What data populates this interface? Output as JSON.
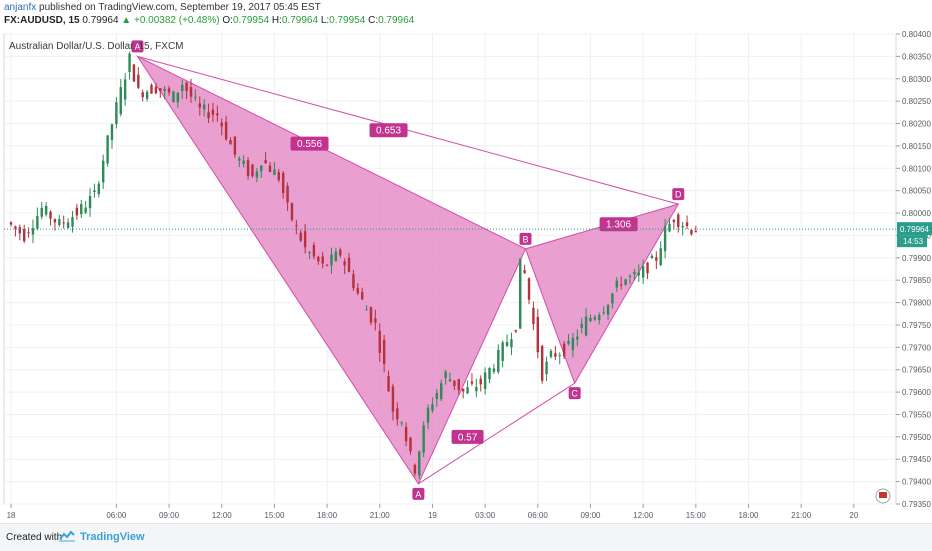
{
  "header": {
    "author": "anjanfx",
    "published": " published on TradingView.com, September 19, 2017 05:45 EST",
    "symbol": "FX:AUDUSD, 15",
    "last": "0.79964",
    "change": "▲ +0.00382 (+0.48%)",
    "open_label": "O:",
    "open": "0.79954",
    "high_label": "H:",
    "high": "0.79964",
    "low_label": "L:",
    "low": "0.79954",
    "close_label": "C:",
    "close": "0.79964"
  },
  "footer": {
    "created_with": "Created with",
    "brand": "TradingView"
  },
  "colors": {
    "up": "#2e8b57",
    "down": "#b3323c",
    "pattern_fill": "#e487c4",
    "pattern_stroke": "#d24ea8",
    "label_bg": "#c2338f",
    "grid": "#eef0f3",
    "price_line": "#1f9e8f",
    "price_badge": "#2a9d8c"
  },
  "chart_data": {
    "type": "candlestick",
    "title": "Australian Dollar/U.S. Dollar, 15, FXCM",
    "y_range": [
      0.7935,
      0.804
    ],
    "y_ticks": [
      "0.80400",
      "0.80350",
      "0.80300",
      "0.80250",
      "0.80200",
      "0.80150",
      "0.80100",
      "0.80050",
      "0.80000",
      "0.79950",
      "0.79900",
      "0.79850",
      "0.79800",
      "0.79750",
      "0.79700",
      "0.79650",
      "0.79600",
      "0.79550",
      "0.79500",
      "0.79450",
      "0.79400",
      "0.79350"
    ],
    "x_ticks": [
      "18",
      "06:00",
      "09:00",
      "12:00",
      "15:00",
      "18:00",
      "21:00",
      "19",
      "03:00",
      "06:00",
      "09:00",
      "12:00",
      "15:00",
      "18:00",
      "21:00",
      "20"
    ],
    "x_tick_hours": [
      0,
      6,
      9,
      12,
      15,
      18,
      21,
      24,
      27,
      30,
      33,
      36,
      39,
      42,
      45,
      48
    ],
    "x_range_hours": [
      -0.4,
      50.4
    ],
    "current_price": "0.79964",
    "countdown": "14:53",
    "pattern": {
      "points": [
        {
          "name": "X",
          "label": "A",
          "h": 7.2,
          "price": 0.8035
        },
        {
          "name": "A",
          "label": "A",
          "h": 23.2,
          "price": 0.79395
        },
        {
          "name": "B",
          "label": "B",
          "h": 29.3,
          "price": 0.7992
        },
        {
          "name": "C",
          "label": "C",
          "h": 32.1,
          "price": 0.7962
        },
        {
          "name": "D",
          "label": "D",
          "h": 38.0,
          "price": 0.8002
        }
      ],
      "ratios": [
        {
          "text": "0.556",
          "h": 17.0,
          "price": 0.80155
        },
        {
          "text": "0.653",
          "h": 21.5,
          "price": 0.80185
        },
        {
          "text": "1.306",
          "h": 34.6,
          "price": 0.79975
        },
        {
          "text": "0.57",
          "h": 26.0,
          "price": 0.795
        }
      ]
    },
    "candles_desc": "15-minute OHLC candles from 17:30 (Sep 18 session start) to 16:00 next day; values approximate",
    "anchors": [
      [
        0,
        0.7998
      ],
      [
        1,
        0.7995
      ],
      [
        2,
        0.8001
      ],
      [
        3,
        0.79975
      ],
      [
        4,
        0.8
      ],
      [
        5,
        0.8004
      ],
      [
        6,
        0.802
      ],
      [
        7,
        0.80345
      ],
      [
        7.5,
        0.8027
      ],
      [
        8.5,
        0.8028
      ],
      [
        9.5,
        0.8026
      ],
      [
        10,
        0.8029
      ],
      [
        11,
        0.8023
      ],
      [
        12,
        0.8022
      ],
      [
        13,
        0.8013
      ],
      [
        14,
        0.8008
      ],
      [
        14.5,
        0.8012
      ],
      [
        15.5,
        0.8008
      ],
      [
        16,
        0.8001
      ],
      [
        17,
        0.7992
      ],
      [
        18,
        0.7988
      ],
      [
        19,
        0.7991
      ],
      [
        20,
        0.7982
      ],
      [
        21,
        0.7975
      ],
      [
        22,
        0.7956
      ],
      [
        22.5,
        0.7954
      ],
      [
        23.2,
        0.7942
      ],
      [
        24,
        0.7956
      ],
      [
        25,
        0.7964
      ],
      [
        26,
        0.796
      ],
      [
        27,
        0.7962
      ],
      [
        28,
        0.7968
      ],
      [
        29,
        0.7975
      ],
      [
        29.3,
        0.7991
      ],
      [
        30,
        0.7975
      ],
      [
        30.5,
        0.7964
      ],
      [
        31,
        0.7968
      ],
      [
        32,
        0.797
      ],
      [
        33,
        0.7976
      ],
      [
        34,
        0.7979
      ],
      [
        35,
        0.7985
      ],
      [
        36,
        0.7986
      ],
      [
        37,
        0.799
      ],
      [
        37.5,
        0.7996
      ],
      [
        38,
        0.7999
      ],
      [
        39,
        0.79964
      ]
    ]
  }
}
